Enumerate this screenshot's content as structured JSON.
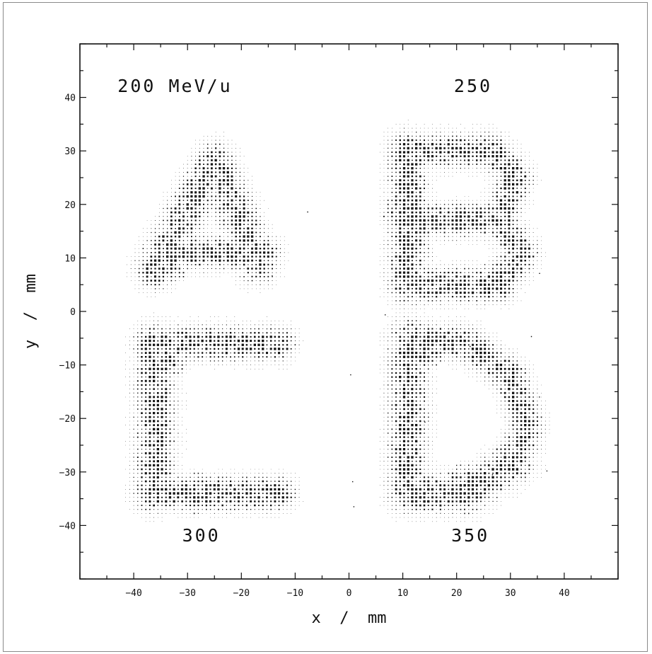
{
  "chart_data": {
    "type": "heatmap",
    "title": "",
    "xlabel": "x  /  mm",
    "ylabel": "y  /  mm",
    "xlim": [
      -50,
      50
    ],
    "ylim": [
      -50,
      50
    ],
    "x_ticks": [
      -40,
      -30,
      -20,
      -10,
      0,
      10,
      20,
      30,
      40
    ],
    "y_ticks": [
      40,
      30,
      20,
      10,
      0,
      -10,
      -20,
      -30,
      -40
    ],
    "grid": false,
    "colors": {
      "ink": "#111111",
      "frame": "#8a8a8a"
    },
    "annotations": [
      {
        "text": "200  MeV/u",
        "x": -43,
        "y": 41
      },
      {
        "text": "250",
        "x": 19.5,
        "y": 41
      },
      {
        "text": "300",
        "x": -31,
        "y": -43
      },
      {
        "text": "350",
        "x": 19,
        "y": -43
      }
    ],
    "letters": [
      {
        "name": "A",
        "energy": "200 MeV/u",
        "strokes": [
          {
            "x1": -36,
            "y1": 8,
            "x2": -25,
            "y2": 28,
            "width": 3.5
          },
          {
            "x1": -25,
            "y1": 28,
            "x2": -17,
            "y2": 9,
            "width": 3.5
          },
          {
            "x1": -32,
            "y1": 11,
            "x2": -16,
            "y2": 11,
            "width": 3
          }
        ],
        "hotspots": [
          {
            "x": -34,
            "y": 10,
            "r": 3,
            "intensity": 0.95
          },
          {
            "x": -26,
            "y": 25,
            "r": 2.5,
            "intensity": 0.8
          }
        ]
      },
      {
        "name": "B",
        "energy": "250",
        "strokes": [
          {
            "x1": 11,
            "y1": 5,
            "x2": 11,
            "y2": 30,
            "width": 3.5
          },
          {
            "x1": 11,
            "y1": 30,
            "x2": 27,
            "y2": 30,
            "width": 3
          },
          {
            "x1": 27,
            "y1": 30,
            "x2": 31,
            "y2": 25,
            "width": 3
          },
          {
            "x1": 31,
            "y1": 25,
            "x2": 28,
            "y2": 18,
            "width": 3
          },
          {
            "x1": 11,
            "y1": 17,
            "x2": 28,
            "y2": 17,
            "width": 3
          },
          {
            "x1": 28,
            "y1": 17,
            "x2": 32,
            "y2": 11,
            "width": 3
          },
          {
            "x1": 32,
            "y1": 11,
            "x2": 28,
            "y2": 5,
            "width": 3
          },
          {
            "x1": 11,
            "y1": 5,
            "x2": 28,
            "y2": 5,
            "width": 3
          }
        ],
        "hotspots": [
          {
            "x": 11,
            "y": 18,
            "r": 3,
            "intensity": 0.95
          },
          {
            "x": 28,
            "y": 6,
            "r": 2.5,
            "intensity": 0.8
          }
        ]
      },
      {
        "name": "C",
        "energy": "300",
        "strokes": [
          {
            "x1": -13,
            "y1": -6,
            "x2": -37,
            "y2": -6,
            "width": 3
          },
          {
            "x1": -36,
            "y1": -6,
            "x2": -36,
            "y2": -34,
            "width": 3.5
          },
          {
            "x1": -37,
            "y1": -34,
            "x2": -13,
            "y2": -34,
            "width": 3
          }
        ],
        "hotspots": [
          {
            "x": -34,
            "y": -9,
            "r": 2.5,
            "intensity": 0.85
          },
          {
            "x": -28,
            "y": -34,
            "r": 2.5,
            "intensity": 0.85
          }
        ]
      },
      {
        "name": "D",
        "energy": "350",
        "strokes": [
          {
            "x1": 11,
            "y1": -5,
            "x2": 11,
            "y2": -34,
            "width": 3.5
          },
          {
            "x1": 11,
            "y1": -5,
            "x2": 22,
            "y2": -6,
            "width": 3
          },
          {
            "x1": 22,
            "y1": -6,
            "x2": 30,
            "y2": -12,
            "width": 3
          },
          {
            "x1": 30,
            "y1": -12,
            "x2": 33,
            "y2": -21,
            "width": 3
          },
          {
            "x1": 33,
            "y1": -21,
            "x2": 31,
            "y2": -28,
            "width": 3
          },
          {
            "x1": 31,
            "y1": -28,
            "x2": 22,
            "y2": -34,
            "width": 3.5
          },
          {
            "x1": 22,
            "y1": -34,
            "x2": 11,
            "y2": -34,
            "width": 3.5
          }
        ],
        "hotspots": [
          {
            "x": 14,
            "y": -7,
            "r": 2.5,
            "intensity": 0.9
          },
          {
            "x": 22,
            "y": -33,
            "r": 3,
            "intensity": 0.95
          },
          {
            "x": 30,
            "y": -28,
            "r": 2.5,
            "intensity": 0.85
          }
        ]
      }
    ]
  }
}
